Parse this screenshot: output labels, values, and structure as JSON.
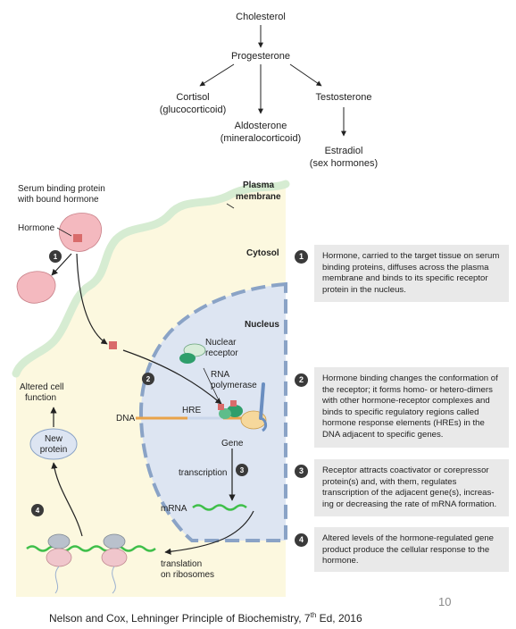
{
  "pathway": {
    "cholesterol": "Cholesterol",
    "progesterone": "Progesterone",
    "cortisol_line1": "Cortisol",
    "cortisol_line2": "(glucocorticoid)",
    "aldosterone_line1": "Aldosterone",
    "aldosterone_line2": "(mineralocorticoid)",
    "testosterone": "Testosterone",
    "estradiol_line1": "Estradiol",
    "estradiol_line2": "(sex hormones)"
  },
  "figure": {
    "serum_line1": "Serum binding protein",
    "serum_line2": "with bound hormone",
    "hormone": "Hormone",
    "plasma_line1": "Plasma",
    "plasma_line2": "membrane",
    "cytosol": "Cytosol",
    "nucleus": "Nucleus",
    "nuclear_line1": "Nuclear",
    "nuclear_line2": "receptor",
    "rna_line1": "RNA",
    "rna_line2": "polymerase",
    "altered_line1": "Altered cell",
    "altered_line2": "function",
    "dna": "DNA",
    "hre": "HRE",
    "new_protein_line1": "New",
    "new_protein_line2": "protein",
    "gene": "Gene",
    "transcription": "transcription",
    "mrna": "mRNA",
    "translation_line1": "translation",
    "translation_line2": "on ribosomes",
    "markers": [
      "1",
      "2",
      "3",
      "4"
    ]
  },
  "steps": [
    {
      "num": "1",
      "text": "Hormone, carried to the target tissue on serum binding proteins, diffuses across the plasma membrane and binds to its specific receptor protein in the nucleus."
    },
    {
      "num": "2",
      "text": "Hormone binding changes the conformation of the receptor; it forms homo- or hetero-dimers with other hormone-receptor complexes and binds to specific regulatory regions called hormone response elements (HREs) in the DNA adjacent to specific genes."
    },
    {
      "num": "3",
      "text": "Receptor attracts coactivator or corepressor protein(s) and, with them, regulates transcription of the adjacent gene(s), increas-ing or decreasing the rate of mRNA formation."
    },
    {
      "num": "4",
      "text": "Altered levels of the hormone-regulated gene product produce the cellular response to the hormone."
    }
  ],
  "footer": {
    "page_number": "10",
    "citation_before": "Nelson and Cox, Lehninger Principle of Biochemistry, 7",
    "citation_sup": "th",
    "citation_after": " Ed, 2016"
  },
  "colors": {
    "cytosol": "#fcf8df",
    "nucleus": "#dde5f2",
    "plasma_membrane": "#d6ecd2",
    "nuclear_envelope": "#8aa3c6",
    "serum_protein": "#f4b9bf",
    "receptor": "#2f9e6b",
    "mrna": "#3fbf4a",
    "dna_hre": "#e9a34a",
    "step_box": "#e9e9e9"
  }
}
